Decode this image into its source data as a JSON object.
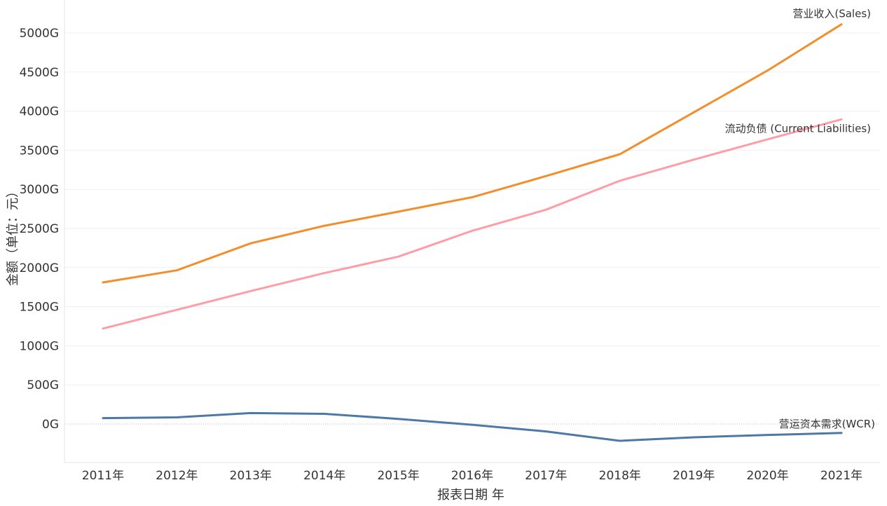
{
  "chart_data": {
    "type": "line",
    "title": "",
    "xlabel": "报表日期 年",
    "ylabel": "金额（单位：元）",
    "categories": [
      "2011年",
      "2012年",
      "2013年",
      "2014年",
      "2015年",
      "2016年",
      "2017年",
      "2018年",
      "2019年",
      "2020年",
      "2021年"
    ],
    "ylim": [
      -500,
      5300
    ],
    "yticks": [
      0,
      500,
      1000,
      1500,
      2000,
      2500,
      3000,
      3500,
      4000,
      4500,
      5000
    ],
    "ytick_labels": [
      "0G",
      "500G",
      "1000G",
      "1500G",
      "2000G",
      "2500G",
      "3000G",
      "3500G",
      "4000G",
      "4500G",
      "5000G"
    ],
    "grid": true,
    "zero_line": true,
    "series": [
      {
        "name": "营业收入(Sales)",
        "color": "#f28e2b",
        "values": [
          1810,
          1965,
          2310,
          2535,
          2715,
          2900,
          3170,
          3450,
          3985,
          4520,
          5110
        ]
      },
      {
        "name": "流动负债 (Current Liabilities)",
        "color": "#ff9da7",
        "values": [
          1220,
          1460,
          1700,
          1930,
          2140,
          2470,
          2740,
          3110,
          3380,
          3640,
          3895
        ]
      },
      {
        "name": "营运资本需求(WCR)",
        "color": "#4e79a7",
        "values": [
          75,
          85,
          140,
          130,
          65,
          -10,
          -95,
          -215,
          -170,
          -140,
          -115
        ]
      }
    ]
  }
}
